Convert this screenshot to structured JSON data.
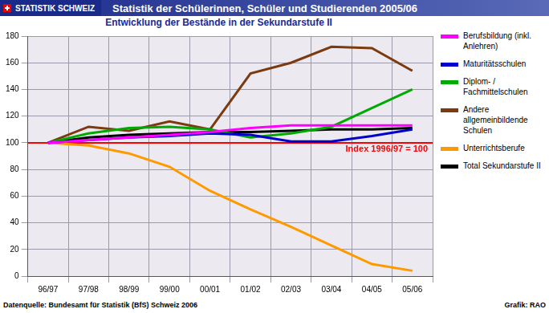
{
  "header_label": "STATISTIK SCHWEIZ",
  "source": "Datenquelle: Bundesamt für Statistik (BfS) Schweiz 2006",
  "credit": "Grafik: RAO",
  "chart_data": {
    "type": "line",
    "title": "Statistik der Schülerinnen, Schüler und Studierenden 2005/06",
    "subtitle": "Entwicklung der Bestände in der Sekundarstufe II",
    "categories": [
      "96/97",
      "97/98",
      "98/99",
      "99/00",
      "00/01",
      "01/02",
      "02/03",
      "03/04",
      "04/05",
      "05/06"
    ],
    "series": [
      {
        "name": "Berufsbildung (inkl. Anlehren)",
        "color": "#ff00ff",
        "values": [
          100,
          102,
          104,
          106,
          108,
          111,
          113,
          113,
          113,
          113
        ]
      },
      {
        "name": "Maturitätsschulen",
        "color": "#0000cc",
        "values": [
          100,
          102,
          104,
          105,
          107,
          106,
          101,
          101,
          105,
          110
        ]
      },
      {
        "name": "Diplom- / Fachmittelschulen",
        "color": "#00aa00",
        "values": [
          100,
          107,
          111,
          112,
          110,
          104,
          107,
          112,
          126,
          140
        ]
      },
      {
        "name": "Andere allgemeinbildende Schulen",
        "color": "#7b3a10",
        "values": [
          100,
          112,
          109,
          116,
          110,
          152,
          160,
          172,
          171,
          154
        ]
      },
      {
        "name": "Unterrichtsberufe",
        "color": "#ff9900",
        "values": [
          100,
          98,
          92,
          82,
          64,
          50,
          37,
          23,
          9,
          4
        ]
      },
      {
        "name": "Total Sekundarstufe II",
        "color": "#000000",
        "values": [
          100,
          104,
          106,
          107,
          108,
          108,
          109,
          110,
          110,
          111
        ]
      }
    ],
    "ylim": [
      0,
      180
    ],
    "yticks": [
      0,
      20,
      40,
      60,
      80,
      100,
      120,
      140,
      160,
      180
    ],
    "grid": true,
    "legend": "right",
    "annotations": [
      {
        "text": "Index 1996/97 = 100",
        "y": 100,
        "color": "#ff0000"
      }
    ]
  }
}
